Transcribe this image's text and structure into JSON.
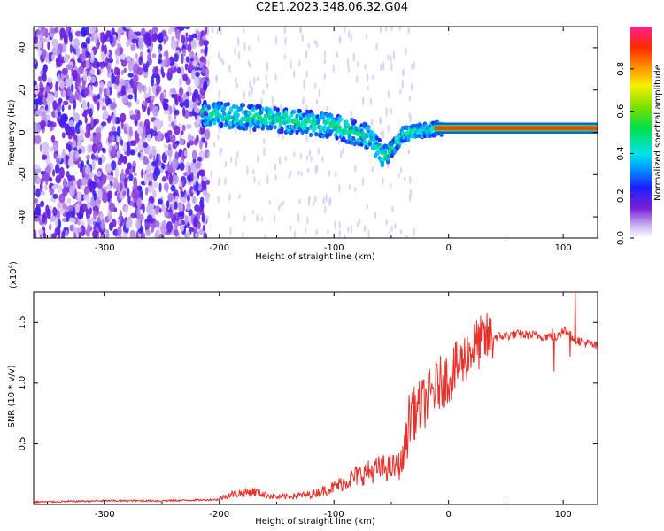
{
  "title": "C2E1.2023.348.06.32.G04",
  "colors": {
    "snr_line": "#e8312b",
    "background": "#ffffff",
    "axis": "#000000"
  },
  "chart_data": [
    {
      "type": "heatmap",
      "xlabel": "Height of straight line (km)",
      "ylabel": "Frequency (Hz)",
      "xlim": [
        -362,
        130
      ],
      "ylim": [
        -50,
        50
      ],
      "xticks": [
        -300,
        -200,
        -100,
        0,
        100
      ],
      "xtick_labels": [
        "-300",
        "-200",
        "-100",
        "0",
        "100"
      ],
      "yticks": [
        -40,
        -20,
        0,
        20,
        40
      ],
      "ytick_labels": [
        "-40",
        "-20",
        "0",
        "20",
        "40"
      ],
      "colorbar": {
        "label": "Normalized spectral amplitude",
        "range": [
          0,
          1
        ],
        "ticks": [
          0.0,
          0.2,
          0.4,
          0.6,
          0.8
        ],
        "tick_labels": [
          "0.0",
          "0.2",
          "0.4",
          "0.6",
          "0.8"
        ],
        "colormap": "rainbow"
      },
      "ridge": {
        "description_points": [
          {
            "x": -215,
            "y": 9
          },
          {
            "x": -150,
            "y": 6
          },
          {
            "x": -100,
            "y": 3
          },
          {
            "x": -70,
            "y": -2
          },
          {
            "x": -55,
            "y": -12
          },
          {
            "x": -40,
            "y": -1
          },
          {
            "x": -10,
            "y": 2
          },
          {
            "x": 0,
            "y": 2
          },
          {
            "x": 130,
            "y": 2
          }
        ]
      },
      "noise_region": {
        "x": [
          -362,
          -210
        ],
        "y": [
          -50,
          50
        ]
      }
    },
    {
      "type": "line",
      "xlabel": "Height of straight line (km)",
      "ylabel": "SNR (10 * v/v)",
      "y_multiplier_label": "(x10",
      "y_multiplier_exp": "4",
      "y_multiplier_close": ")",
      "xlim": [
        -362,
        130
      ],
      "ylim": [
        0,
        1.75
      ],
      "xticks": [
        -300,
        -200,
        -100,
        0,
        100
      ],
      "xtick_labels": [
        "-300",
        "-200",
        "-100",
        "0",
        "100"
      ],
      "yticks": [
        0.5,
        1.0,
        1.5
      ],
      "ytick_labels": [
        "0.5",
        "1.0",
        "1.5"
      ],
      "series": [
        {
          "color": "#e8312b",
          "x": [
            -362,
            -300,
            -250,
            -200,
            -190,
            -170,
            -150,
            -120,
            -100,
            -80,
            -60,
            -45,
            -40,
            -35,
            -30,
            -20,
            -10,
            0,
            10,
            20,
            30,
            40,
            60,
            80,
            95,
            100,
            110,
            130
          ],
          "y": [
            0.02,
            0.03,
            0.03,
            0.04,
            0.07,
            0.09,
            0.05,
            0.07,
            0.12,
            0.2,
            0.25,
            0.26,
            0.3,
            0.55,
            0.75,
            0.85,
            0.98,
            1.05,
            1.15,
            1.28,
            1.35,
            1.38,
            1.4,
            1.39,
            1.38,
            1.45,
            1.36,
            1.3
          ]
        }
      ]
    }
  ]
}
